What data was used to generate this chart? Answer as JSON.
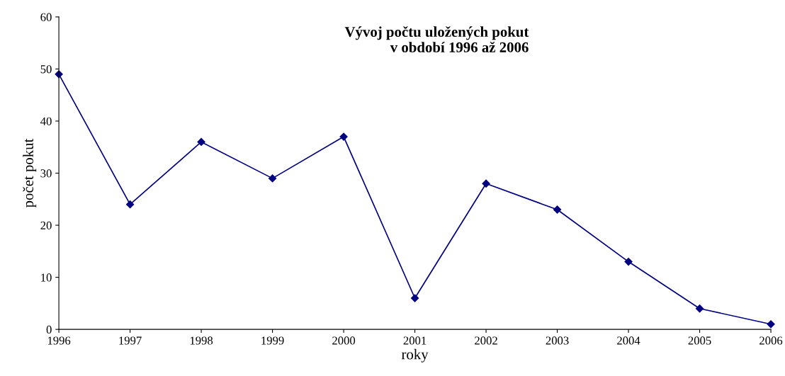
{
  "chart_data": {
    "type": "line",
    "title": "Vývoj počtu uložených pokut\nv období 1996 až 2006",
    "xlabel": "roky",
    "ylabel": "počet pokut",
    "categories": [
      "1996",
      "1997",
      "1998",
      "1999",
      "2000",
      "2001",
      "2002",
      "2003",
      "2004",
      "2005",
      "2006"
    ],
    "series": [
      {
        "color": "#000080",
        "values": [
          49,
          24,
          36,
          29,
          37,
          6,
          28,
          23,
          13,
          4,
          1
        ]
      }
    ],
    "ylim": [
      0,
      60
    ],
    "yticks": [
      0,
      10,
      20,
      30,
      40,
      50,
      60
    ],
    "grid": false,
    "legend": false,
    "marker": "diamond",
    "line_style": "solid"
  }
}
